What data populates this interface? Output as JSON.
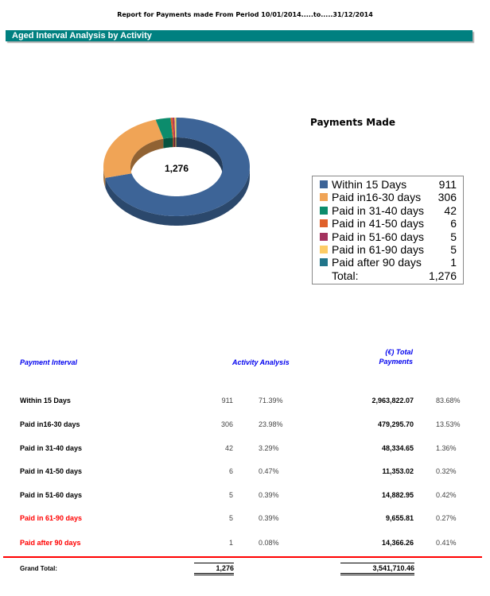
{
  "report_title": "Report for Payments made From Period 10/01/2014.....to.....31/12/2014",
  "section_title": "Aged Interval Analysis by Activity",
  "chart_data": {
    "type": "pie",
    "style": "3d-donut",
    "title": "Payments Made",
    "center_label": "1,276",
    "categories": [
      "Within 15 Days",
      "Paid in16-30 days",
      "Paid in 31-40 days",
      "Paid in 41-50 days",
      "Paid in 51-60 days",
      "Paid in 61-90 days",
      "Paid after 90 days"
    ],
    "values": [
      911,
      306,
      42,
      6,
      5,
      5,
      1
    ],
    "value_labels": [
      "911",
      "306",
      "42",
      "6",
      "5",
      "5",
      "1"
    ],
    "colors": [
      "#3d6497",
      "#f0a456",
      "#0c8c6c",
      "#e0602a",
      "#a3325e",
      "#fdcc66",
      "#21758a"
    ],
    "total_label": "Total:",
    "total": "1,276",
    "legend_position": "right"
  },
  "table": {
    "headers": {
      "interval": "Payment Interval",
      "activity": "Activity Analysis",
      "total_line1": "(€) Total",
      "total_line2": "Payments"
    },
    "rows": [
      {
        "label": "Within 15 Days",
        "count": "911",
        "pct": "71.39%",
        "amount": "2,963,822.07",
        "amount_pct": "83.68%",
        "highlight": false
      },
      {
        "label": "Paid in16-30 days",
        "count": "306",
        "pct": "23.98%",
        "amount": "479,295.70",
        "amount_pct": "13.53%",
        "highlight": false
      },
      {
        "label": "Paid in 31-40 days",
        "count": "42",
        "pct": "3.29%",
        "amount": "48,334.65",
        "amount_pct": "1.36%",
        "highlight": false
      },
      {
        "label": "Paid in 41-50 days",
        "count": "6",
        "pct": "0.47%",
        "amount": "11,353.02",
        "amount_pct": "0.32%",
        "highlight": false
      },
      {
        "label": "Paid in 51-60 days",
        "count": "5",
        "pct": "0.39%",
        "amount": "14,882.95",
        "amount_pct": "0.42%",
        "highlight": false
      },
      {
        "label": "Paid in 61-90 days",
        "count": "5",
        "pct": "0.39%",
        "amount": "9,655.81",
        "amount_pct": "0.27%",
        "highlight": true
      },
      {
        "label": "Paid after 90 days",
        "count": "1",
        "pct": "0.08%",
        "amount": "14,366.26",
        "amount_pct": "0.41%",
        "highlight": true
      }
    ],
    "grand_total": {
      "label": "Grand Total:",
      "count": "1,276",
      "amount": "3,541,710.46"
    },
    "highlight_color": "#ff0000",
    "header_color": "#0000ee"
  }
}
